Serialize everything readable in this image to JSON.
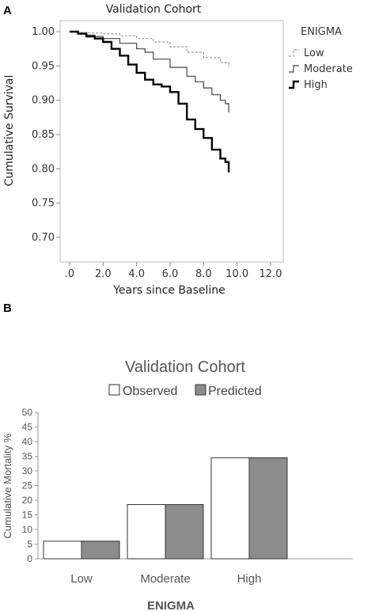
{
  "panel_a": {
    "letter": "A"
  },
  "panel_b": {
    "letter": "B"
  },
  "chart_data": [
    {
      "type": "line",
      "title": "Validation Cohort",
      "xlabel": "Years since Baseline",
      "ylabel": "Cumulative Survival",
      "xlim": [
        0,
        12
      ],
      "ylim": [
        0.7,
        1.0
      ],
      "x_ticks": [
        ".0",
        "2.0",
        "4.0",
        "6.0",
        "8.0",
        "10.0",
        "12.0"
      ],
      "y_ticks": [
        "0.70",
        "0.75",
        "0.80",
        "0.85",
        "0.90",
        "0.95",
        "1.00"
      ],
      "legend_title": "ENIGMA",
      "legend_position": "right",
      "series": [
        {
          "name": "Low",
          "style": "dashed",
          "color": "#999999",
          "points": [
            [
              0,
              1.0
            ],
            [
              0.5,
              0.999
            ],
            [
              1,
              0.998
            ],
            [
              2,
              0.997
            ],
            [
              3,
              0.994
            ],
            [
              4,
              0.99
            ],
            [
              5,
              0.985
            ],
            [
              6,
              0.978
            ],
            [
              7,
              0.97
            ],
            [
              8,
              0.962
            ],
            [
              9,
              0.955
            ],
            [
              9.5,
              0.948
            ]
          ]
        },
        {
          "name": "Moderate",
          "style": "thin",
          "color": "#444444",
          "points": [
            [
              0,
              1.0
            ],
            [
              0.5,
              0.997
            ],
            [
              1,
              0.995
            ],
            [
              1.5,
              0.993
            ],
            [
              2,
              0.99
            ],
            [
              3,
              0.983
            ],
            [
              4,
              0.975
            ],
            [
              4.5,
              0.97
            ],
            [
              5,
              0.96
            ],
            [
              6,
              0.948
            ],
            [
              7,
              0.935
            ],
            [
              7.5,
              0.927
            ],
            [
              8,
              0.918
            ],
            [
              8.5,
              0.908
            ],
            [
              9,
              0.9
            ],
            [
              9.3,
              0.895
            ],
            [
              9.5,
              0.882
            ]
          ]
        },
        {
          "name": "High",
          "style": "thick",
          "color": "#000000",
          "points": [
            [
              0,
              1.0
            ],
            [
              0.5,
              0.997
            ],
            [
              1,
              0.993
            ],
            [
              1.5,
              0.99
            ],
            [
              2,
              0.985
            ],
            [
              2.5,
              0.975
            ],
            [
              3,
              0.965
            ],
            [
              3.5,
              0.952
            ],
            [
              4,
              0.94
            ],
            [
              4.5,
              0.93
            ],
            [
              5,
              0.923
            ],
            [
              5.5,
              0.92
            ],
            [
              6,
              0.912
            ],
            [
              6.5,
              0.895
            ],
            [
              7,
              0.872
            ],
            [
              7.5,
              0.858
            ],
            [
              8,
              0.845
            ],
            [
              8.5,
              0.828
            ],
            [
              9,
              0.815
            ],
            [
              9.3,
              0.81
            ],
            [
              9.5,
              0.795
            ]
          ]
        }
      ]
    },
    {
      "type": "bar",
      "title": "Validation Cohort",
      "xlabel": "ENIGMA",
      "ylabel": "Cumulative Mortality %",
      "ylim": [
        0,
        50
      ],
      "y_ticks": [
        "0",
        "5",
        "10",
        "15",
        "20",
        "25",
        "30",
        "35",
        "40",
        "45",
        "50"
      ],
      "categories": [
        "Low",
        "Moderate",
        "High"
      ],
      "legend_position": "top",
      "series": [
        {
          "name": "Observed",
          "color": "#ffffff",
          "values": [
            6,
            18.5,
            34.5
          ]
        },
        {
          "name": "Predicted",
          "color": "#8c8c8c",
          "values": [
            6,
            18.5,
            34.5
          ]
        }
      ]
    }
  ]
}
